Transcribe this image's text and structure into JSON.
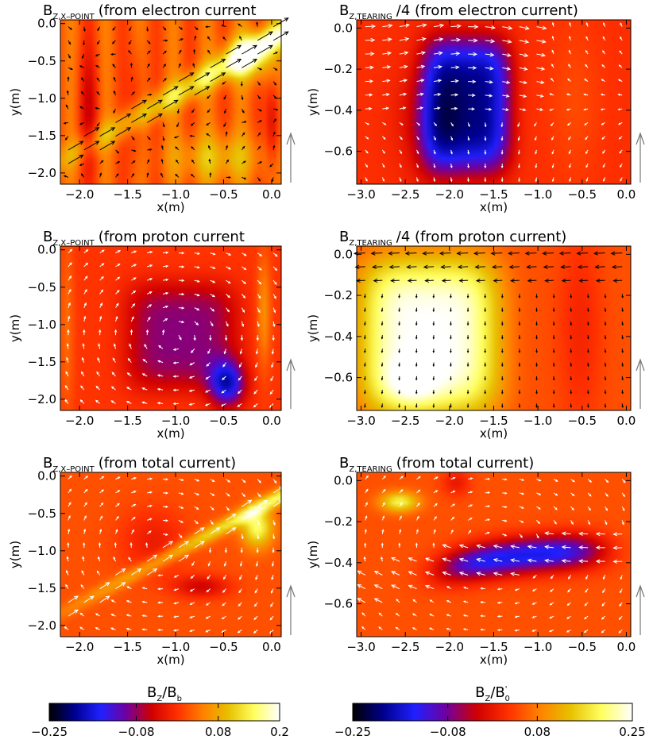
{
  "chart_data": [
    {
      "type": "heatmap",
      "title_symbol": "B",
      "title_subscript": "Z,X–POINT",
      "title_suffix": "(from electron current",
      "xlabel": "x(m)",
      "ylabel": "y(m)",
      "xlim": [
        -2.2,
        0.1
      ],
      "ylim": [
        -2.15,
        0.05
      ],
      "xticks": [
        "-2.0",
        "-1.5",
        "-1.0",
        "-0.5",
        "0.0"
      ],
      "xtick_values": [
        -2.0,
        -1.5,
        -1.0,
        -0.5,
        0.0
      ],
      "yticks": [
        "0.0",
        "-0.5",
        "-1.0",
        "-1.5",
        "-2.0"
      ],
      "ytick_values": [
        0.0,
        -0.5,
        -1.0,
        -1.5,
        -2.0
      ],
      "pattern": "electron_xpoint",
      "arrow_color": "#000000"
    },
    {
      "type": "heatmap",
      "title_symbol": "B",
      "title_subscript": "Z,TEARING",
      "title_suffix": "/4 (from electron current)",
      "xlabel": "x(m)",
      "ylabel": "y(m)",
      "xlim": [
        -3.05,
        0.05
      ],
      "ylim": [
        -0.76,
        0.04
      ],
      "xticks": [
        "-3.0",
        "-2.5",
        "-2.0",
        "-1.5",
        "-1.0",
        "-0.5",
        "0.0"
      ],
      "xtick_values": [
        -3.0,
        -2.5,
        -2.0,
        -1.5,
        -1.0,
        -0.5,
        0.0
      ],
      "yticks": [
        "0.0",
        "-0.2",
        "-0.4",
        "-0.6"
      ],
      "ytick_values": [
        0.0,
        -0.2,
        -0.4,
        -0.6
      ],
      "pattern": "electron_tearing",
      "arrow_color": "#ffffff"
    },
    {
      "type": "heatmap",
      "title_symbol": "B",
      "title_subscript": "Z,X–POINT",
      "title_suffix": "(from proton current",
      "xlabel": "x(m)",
      "ylabel": "y(m)",
      "xlim": [
        -2.2,
        0.1
      ],
      "ylim": [
        -2.15,
        0.05
      ],
      "xticks": [
        "-2.0",
        "-1.5",
        "-1.0",
        "-0.5",
        "0.0"
      ],
      "xtick_values": [
        -2.0,
        -1.5,
        -1.0,
        -0.5,
        0.0
      ],
      "yticks": [
        "0.0",
        "-0.5",
        "-1.0",
        "-1.5",
        "-2.0"
      ],
      "ytick_values": [
        0.0,
        -0.5,
        -1.0,
        -1.5,
        -2.0
      ],
      "pattern": "proton_xpoint",
      "arrow_color": "#ffffff"
    },
    {
      "type": "heatmap",
      "title_symbol": "B",
      "title_subscript": "Z,TEARING",
      "title_suffix": "/4 (from proton current)",
      "xlabel": "x(m)",
      "ylabel": "y(m)",
      "xlim": [
        -3.05,
        0.05
      ],
      "ylim": [
        -0.76,
        0.04
      ],
      "xticks": [
        "-3.0",
        "-2.5",
        "-2.0",
        "-1.5",
        "-1.0",
        "-0.5",
        "0.0"
      ],
      "xtick_values": [
        -3.0,
        -2.5,
        -2.0,
        -1.5,
        -1.0,
        -0.5,
        0.0
      ],
      "yticks": [
        "0.0",
        "-0.2",
        "-0.4",
        "-0.6"
      ],
      "ytick_values": [
        0.0,
        -0.2,
        -0.4,
        -0.6
      ],
      "pattern": "proton_tearing",
      "arrow_color": "#000000"
    },
    {
      "type": "heatmap",
      "title_symbol": "B",
      "title_subscript": "Z,X–POINT",
      "title_suffix": "(from total current)",
      "xlabel": "x(m)",
      "ylabel": "y(m)",
      "xlim": [
        -2.2,
        0.1
      ],
      "ylim": [
        -2.15,
        0.05
      ],
      "xticks": [
        "-2.0",
        "-1.5",
        "-1.0",
        "-0.5",
        "0.0"
      ],
      "xtick_values": [
        -2.0,
        -1.5,
        -1.0,
        -0.5,
        0.0
      ],
      "yticks": [
        "0.0",
        "-0.5",
        "-1.0",
        "-1.5",
        "-2.0"
      ],
      "ytick_values": [
        0.0,
        -0.5,
        -1.0,
        -1.5,
        -2.0
      ],
      "pattern": "total_xpoint",
      "arrow_color": "#ffffff"
    },
    {
      "type": "heatmap",
      "title_symbol": "B",
      "title_subscript": "Z,TEARING",
      "title_suffix": "(from total current)",
      "xlabel": "x(m)",
      "ylabel": "y(m)",
      "xlim": [
        -3.05,
        0.05
      ],
      "ylim": [
        -0.76,
        0.04
      ],
      "xticks": [
        "-3.0",
        "-2.5",
        "-2.0",
        "-1.5",
        "-1.0",
        "-0.5",
        "0.0"
      ],
      "xtick_values": [
        -3.0,
        -2.5,
        -2.0,
        -1.5,
        -1.0,
        -0.5,
        0.0
      ],
      "yticks": [
        "0.0",
        "-0.2",
        "-0.4",
        "-0.6"
      ],
      "ytick_values": [
        0.0,
        -0.2,
        -0.4,
        -0.6
      ],
      "pattern": "total_tearing",
      "arrow_color": "#ffffff"
    }
  ],
  "colorbars": [
    {
      "label_symbol": "B",
      "label_sub": "Z",
      "label_rest": "/B",
      "label_rest_sub": "b",
      "label_rest_sup": "",
      "range": [
        -0.25,
        0.2
      ],
      "tick_labels": [
        "-0.25",
        "-0.08",
        "0.08",
        "0.2"
      ],
      "tick_values": [
        -0.25,
        -0.08,
        0.08,
        0.2
      ]
    },
    {
      "label_symbol": "B",
      "label_sub": "Z",
      "label_rest": "/B",
      "label_rest_sub": "0",
      "label_rest_sup": "'",
      "range": [
        -0.25,
        0.25
      ],
      "tick_labels": [
        "-0.25",
        "-0.08",
        "0.08",
        "0.25"
      ],
      "tick_values": [
        -0.25,
        -0.08,
        0.08,
        0.25
      ]
    }
  ],
  "colormap": [
    "#000000",
    "#000090",
    "#2020ff",
    "#7000a0",
    "#d00000",
    "#ff3000",
    "#ff8000",
    "#e8c000",
    "#ffff60",
    "#ffffff"
  ]
}
